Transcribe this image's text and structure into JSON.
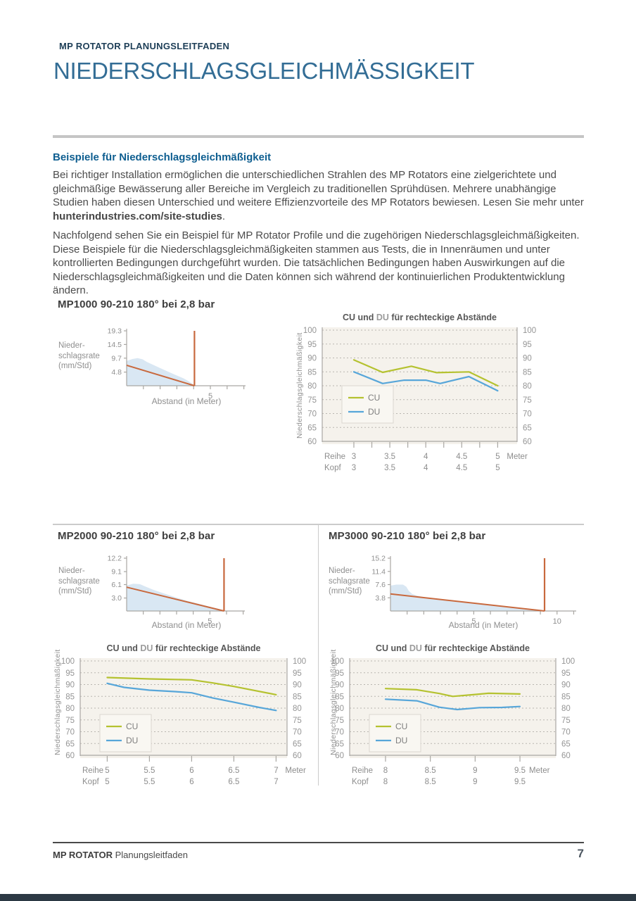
{
  "page": {
    "eyebrow": "MP ROTATOR PLANUNGSLEITFADEN",
    "title": "NIEDERSCHLAGSGLEICHMÄSSIGKEIT",
    "footer_brand": "MP ROTATOR",
    "footer_rest": " Planungsleitfaden",
    "page_number": "7"
  },
  "intro": {
    "heading": "Beispiele für Niederschlagsgleichmäßigkeit",
    "p1_before": "Bei richtiger Installation ermöglichen die unterschiedlichen Strahlen des MP Rotators eine zielgerichtete und gleichmäßige Bewässerung aller Bereiche im Vergleich zu traditionellen Sprühdüsen. Mehrere unabhängige Studien haben diesen Unterschied und weitere Effizienzvorteile des MP Rotators bewiesen. Lesen Sie mehr unter ",
    "p1_link": "hunterindustries.com/site-studies",
    "p1_after": ".",
    "p2": "Nachfolgend sehen Sie ein Beispiel für MP Rotator Profile und die zugehörigen Niederschlagsgleichmäßigkeiten. Diese Beispiele für die Niederschlagsgleichmäßigkeiten stammen aus Tests, die in Innenräumen und unter kontrollierten Bedingungen durchgeführt wurden. Die tatsächlichen Bedingungen haben Auswirkungen auf die Niederschlagsgleichmäßigkeiten und die Daten können sich während der kontinuierlichen Produktentwicklung ändern."
  },
  "colors": {
    "navy": "#1d3e57",
    "steel_blue": "#336d95",
    "heading_blue": "#0e5e90",
    "cu": "#b5c230",
    "du": "#57a6d9",
    "profile_line": "#c8693e",
    "area_fill": "#d9e7f3",
    "plot_bg": "#f5f2ec",
    "legend_bg": "#f9f7f2",
    "legend_border": "#dad7d0",
    "grid": "#b9b6b0",
    "axis": "#a9a7a3",
    "tick_text": "#959595",
    "footer_bar": "#2c3944"
  },
  "chart_data": [
    {
      "id": "mp1000-profile",
      "type": "area",
      "title": "MP1000 90-210 180° bei 2,8 bar",
      "ylabel": "Nieder-\nschlagsrate\n(mm/Std)",
      "xlabel": "Abstand (in Meter)",
      "yticks": [
        19.3,
        14.5,
        9.7,
        4.8
      ],
      "ylim": [
        0,
        19.3
      ],
      "xlim": [
        0,
        7.1
      ],
      "xtick_step": 1,
      "xtick_labeled": [
        5
      ],
      "area_x": [
        0,
        0.35,
        0.65,
        0.95,
        1.2,
        1.6,
        2.0,
        2.5,
        3.0,
        3.4,
        3.7,
        3.95,
        4.05
      ],
      "area_y": [
        8.7,
        9.4,
        9.7,
        9.3,
        8.4,
        7.3,
        6.2,
        4.9,
        3.6,
        2.6,
        1.6,
        0.6,
        0
      ],
      "line_x": [
        0,
        4.05
      ],
      "line_y": [
        7.2,
        0
      ],
      "radius_x": 4.05
    },
    {
      "id": "mp1000-cudu",
      "type": "line",
      "title_bold_1": "CU und ",
      "title_light": "DU",
      "title_bold_2": " für rechteckige Abstände",
      "ylabel": "Niederschlagsgleichmäßigkeit",
      "ylim": [
        60,
        100
      ],
      "ytick_step": 5,
      "xlim": [
        2.56,
        5.27
      ],
      "xticks": [
        3,
        3.5,
        4,
        4.5,
        5
      ],
      "xtick_labels": [
        "3",
        "3.5",
        "4",
        "4.5",
        "5"
      ],
      "xtick_minor_step": 0.25,
      "x_unit": "Meter",
      "row_labels": [
        "Reihe",
        "Kopf"
      ],
      "legend_position": "lower-left",
      "grid": "dashed",
      "series": [
        {
          "name": "CU",
          "color": "#b5c230",
          "x": [
            3,
            3.4,
            3.8,
            4.15,
            4.6,
            5
          ],
          "y": [
            89.3,
            84.8,
            87,
            84.7,
            85,
            80
          ]
        },
        {
          "name": "DU",
          "color": "#57a6d9",
          "x": [
            3,
            3.4,
            3.7,
            4.0,
            4.2,
            4.6,
            5
          ],
          "y": [
            85,
            80.8,
            82,
            82,
            80.8,
            83.3,
            78.2
          ]
        }
      ]
    },
    {
      "id": "mp2000-profile",
      "type": "area",
      "title": "MP2000 90-210 180° bei 2,8 bar",
      "ylabel": "Nieder-\nschlagsrate\n(mm/Std)",
      "xlabel": "Abstand (in Meter)",
      "yticks": [
        12.2,
        9.1,
        6.1,
        3.0
      ],
      "ylim": [
        0,
        12.2
      ],
      "xlim": [
        0,
        7.1
      ],
      "xtick_step": 1,
      "xtick_labeled": [
        5
      ],
      "area_x": [
        0,
        0.4,
        0.8,
        1.1,
        1.6,
        2.2,
        2.9,
        3.6,
        4.3,
        5.0,
        5.5,
        5.85
      ],
      "area_y": [
        5.9,
        6.3,
        6.2,
        5.7,
        4.9,
        4.1,
        3.2,
        2.4,
        1.7,
        1.0,
        0.5,
        0
      ],
      "line_x": [
        0,
        5.85
      ],
      "line_y": [
        5.5,
        0
      ],
      "radius_x": 5.85
    },
    {
      "id": "mp2000-cudu",
      "type": "line",
      "title_bold_1": "CU und ",
      "title_light": "DU",
      "title_bold_2": " für rechteckige Abstände",
      "ylabel": "Niederschlagsgleichmäßigkeit",
      "ylim": [
        60,
        100
      ],
      "ytick_step": 5,
      "xlim": [
        4.68,
        7.13
      ],
      "xticks": [
        5,
        5.5,
        6,
        6.5,
        7
      ],
      "xtick_labels": [
        "5",
        "5.5",
        "6",
        "6.5",
        "7"
      ],
      "xtick_minor_step": 0.5,
      "x_unit": "Meter",
      "row_labels": [
        "Reihe",
        "Kopf"
      ],
      "legend_position": "lower-left",
      "grid": "dashed",
      "series": [
        {
          "name": "CU",
          "color": "#b5c230",
          "x": [
            5,
            5.5,
            6,
            6.25,
            6.5,
            7
          ],
          "y": [
            93,
            92.4,
            92,
            90.7,
            89.2,
            85.7
          ]
        },
        {
          "name": "DU",
          "color": "#57a6d9",
          "x": [
            5,
            5.2,
            5.5,
            5.8,
            6,
            6.25,
            6.5,
            6.8,
            7
          ],
          "y": [
            90.5,
            88.8,
            87.6,
            87,
            86.5,
            84.3,
            82.5,
            80.3,
            79
          ]
        }
      ]
    },
    {
      "id": "mp3000-profile",
      "type": "area",
      "title": "MP3000 90-210 180° bei 2,8 bar",
      "ylabel": "Nieder-\nschlagsrate\n(mm/Std)",
      "xlabel": "Abstand (in Meter)",
      "yticks": [
        15.2,
        11.4,
        7.6,
        3.8
      ],
      "ylim": [
        0,
        15.2
      ],
      "xlim": [
        0,
        11.15
      ],
      "xtick_step": 1,
      "xtick_labeled": [
        5,
        10
      ],
      "area_x": [
        0,
        0.35,
        0.75,
        0.95,
        1.1,
        1.3,
        1.6,
        2.1,
        2.7,
        3.3,
        4.0,
        4.8,
        5.6,
        6.4,
        7.2,
        8.0,
        8.7,
        9.25
      ],
      "area_y": [
        7.3,
        7.6,
        7.6,
        7.0,
        5.8,
        4.9,
        4.4,
        3.9,
        3.4,
        3.1,
        2.8,
        2.4,
        2.0,
        1.6,
        1.2,
        0.8,
        0.4,
        0
      ],
      "line_x": [
        0,
        9.25
      ],
      "line_y": [
        4.9,
        0
      ],
      "radius_x": 9.25
    },
    {
      "id": "mp3000-cudu",
      "type": "line",
      "title_bold_1": "CU und ",
      "title_light": "DU",
      "title_bold_2": " für rechteckige Abstände",
      "ylabel": "Niederschlagsgleichmäßigkeit",
      "ylim": [
        60,
        100
      ],
      "ytick_step": 5,
      "xlim": [
        7.6,
        9.9
      ],
      "xticks": [
        8,
        8.5,
        9,
        9.5
      ],
      "xtick_labels": [
        "8",
        "8.5",
        "9",
        "9.5"
      ],
      "xtick_minor_step": 0.5,
      "x_unit": "Meter",
      "row_labels": [
        "Reihe",
        "Kopf"
      ],
      "legend_position": "lower-left",
      "grid": "dashed",
      "series": [
        {
          "name": "CU",
          "color": "#b5c230",
          "x": [
            8,
            8.35,
            8.6,
            8.75,
            9,
            9.15,
            9.5
          ],
          "y": [
            88.3,
            87.8,
            86.2,
            85,
            85.8,
            86.3,
            86
          ]
        },
        {
          "name": "DU",
          "color": "#57a6d9",
          "x": [
            8,
            8.35,
            8.6,
            8.8,
            9.05,
            9.3,
            9.5
          ],
          "y": [
            83.8,
            83.1,
            80.4,
            79.4,
            80.2,
            80.3,
            80.7
          ]
        }
      ]
    }
  ]
}
